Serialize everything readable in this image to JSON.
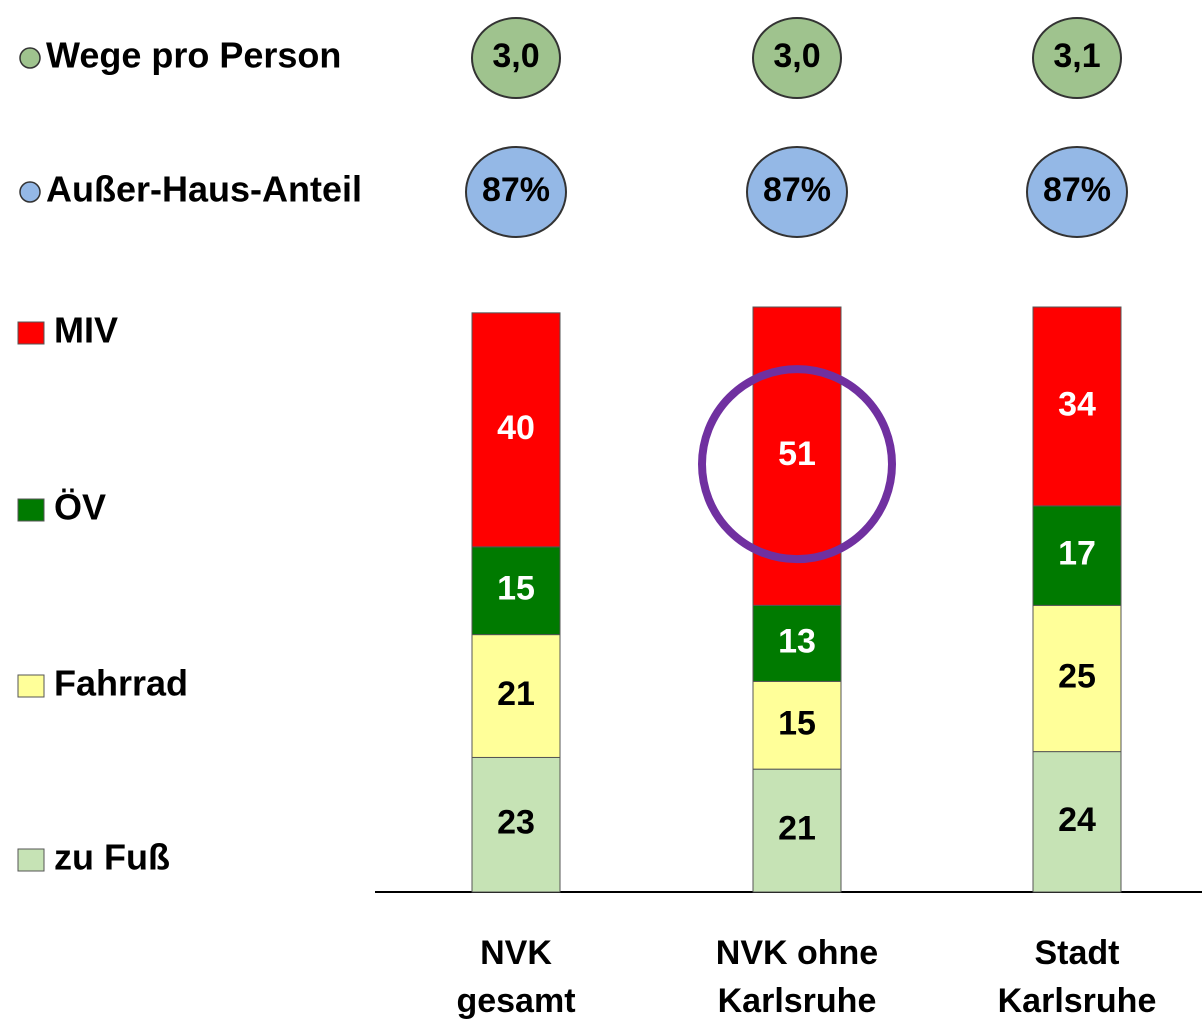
{
  "chart_data": {
    "type": "stacked_bar",
    "categories": [
      [
        "NVK",
        "gesamt"
      ],
      [
        "NVK ohne",
        "Karlsruhe"
      ],
      [
        "Stadt",
        "Karlsruhe"
      ]
    ],
    "ylim": [
      0,
      100
    ],
    "series": [
      {
        "name": "zu Fuß",
        "color": "#c6e3b5",
        "values": [
          23,
          21,
          24
        ]
      },
      {
        "name": "Fahrrad",
        "color": "#ffff99",
        "values": [
          21,
          15,
          25
        ]
      },
      {
        "name": "ÖV",
        "color": "#007a00",
        "values": [
          15,
          13,
          17
        ]
      },
      {
        "name": "MIV",
        "color": "#ff0000",
        "values": [
          40,
          51,
          34
        ]
      }
    ],
    "indicators": [
      {
        "name": "Wege pro Person",
        "color": "#9fc38e",
        "values": [
          3.0,
          3.0,
          3.1
        ],
        "value_labels": [
          "3,0",
          "3,0",
          "3,1"
        ]
      },
      {
        "name": "Außer-Haus-Anteil",
        "color": "#94b8e6",
        "values": [
          87,
          87,
          87
        ],
        "value_labels": [
          "87%",
          "87%",
          "87%"
        ]
      }
    ]
  }
}
